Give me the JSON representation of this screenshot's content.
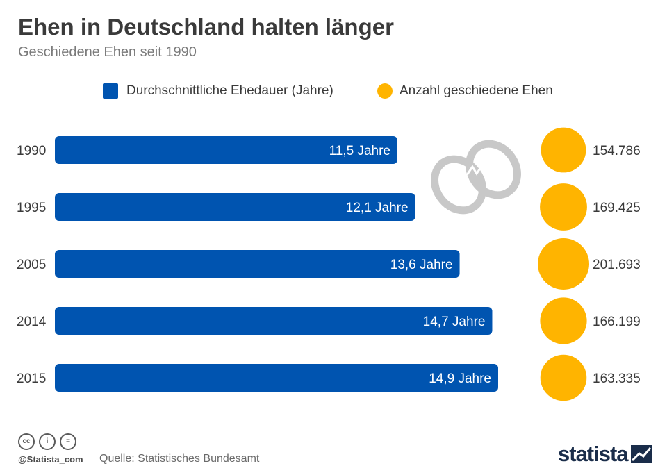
{
  "header": {
    "title": "Ehen in Deutschland halten länger",
    "subtitle": "Geschiedene Ehen seit 1990"
  },
  "legend": {
    "bar_label": "Durchschnittliche Ehedauer (Jahre)",
    "bubble_label": "Anzahl geschiedene Ehen"
  },
  "colors": {
    "bar": "#0054b0",
    "bubble": "#ffb400",
    "rings": "#c8c8c8"
  },
  "chart_data": {
    "type": "bar",
    "orientation": "horizontal",
    "categories": [
      "1990",
      "1995",
      "2005",
      "2014",
      "2015"
    ],
    "series": [
      {
        "name": "Durchschnittliche Ehedauer (Jahre)",
        "values": [
          11.5,
          12.1,
          13.6,
          14.7,
          14.9
        ],
        "labels": [
          "11,5 Jahre",
          "12,1 Jahre",
          "13,6 Jahre",
          "14,7 Jahre",
          "14,9 Jahre"
        ]
      },
      {
        "name": "Anzahl geschiedene Ehen",
        "values": [
          154786,
          169425,
          201693,
          166199,
          163335
        ],
        "labels": [
          "154.786",
          "169.425",
          "201.693",
          "166.199",
          "163.335"
        ]
      }
    ],
    "decoration": "broken-rings-icon"
  },
  "footer": {
    "license_icons": [
      "cc-icon",
      "by-icon",
      "nd-icon"
    ],
    "license_glyphs": [
      "cc",
      "i",
      "="
    ],
    "handle": "@Statista_com",
    "source": "Quelle: Statistisches Bundesamt",
    "brand": "statista"
  }
}
